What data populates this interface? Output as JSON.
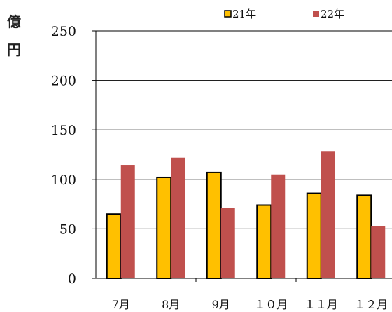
{
  "chart_data": {
    "type": "bar",
    "unit_label": [
      "億",
      "円"
    ],
    "categories": [
      "7月",
      "8月",
      "9月",
      "１０月",
      "１１月",
      "１２月"
    ],
    "series": [
      {
        "name": "21年",
        "values": [
          65,
          102,
          107,
          74,
          86,
          84
        ],
        "color": "#FFC000"
      },
      {
        "name": "22年",
        "values": [
          114,
          122,
          71,
          105,
          128,
          53
        ],
        "color": "#C0504D"
      }
    ],
    "ylim": [
      0,
      250
    ],
    "yticks": [
      0,
      50,
      100,
      150,
      200,
      250
    ],
    "grid": true,
    "legend_position": "top-right"
  }
}
